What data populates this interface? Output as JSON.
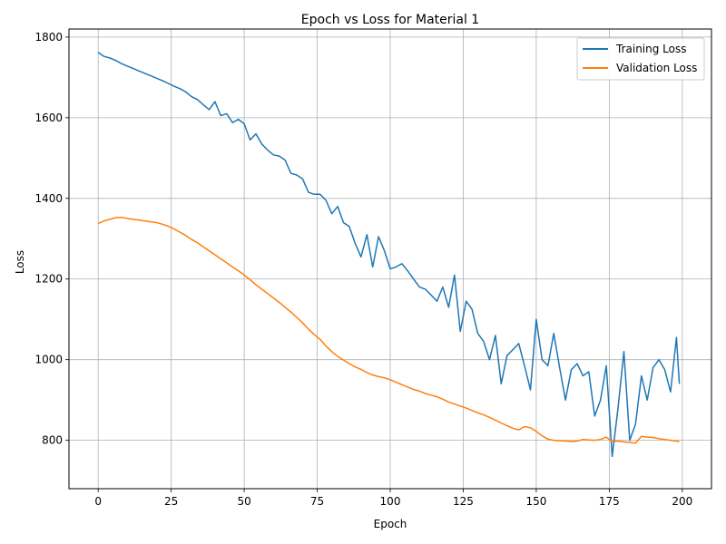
{
  "chart_data": {
    "type": "line",
    "title": "Epoch vs Loss for Material 1",
    "xlabel": "Epoch",
    "ylabel": "Loss",
    "xlim": [
      -10,
      210
    ],
    "ylim": [
      680,
      1820
    ],
    "xticks": [
      0,
      25,
      50,
      75,
      100,
      125,
      150,
      175,
      200
    ],
    "yticks": [
      800,
      1000,
      1200,
      1400,
      1600,
      1800
    ],
    "grid": true,
    "legend_position": "top-right",
    "series": [
      {
        "name": "Training Loss",
        "color": "#1f77b4",
        "x": [
          0,
          2,
          4,
          6,
          8,
          10,
          12,
          14,
          16,
          18,
          20,
          22,
          24,
          26,
          28,
          30,
          32,
          34,
          36,
          38,
          40,
          42,
          44,
          46,
          48,
          50,
          52,
          54,
          56,
          58,
          60,
          62,
          64,
          66,
          68,
          70,
          72,
          74,
          76,
          78,
          80,
          82,
          84,
          86,
          88,
          90,
          92,
          94,
          96,
          98,
          100,
          102,
          104,
          106,
          108,
          110,
          112,
          114,
          116,
          118,
          120,
          122,
          124,
          126,
          128,
          130,
          132,
          134,
          136,
          138,
          140,
          142,
          144,
          146,
          148,
          150,
          152,
          154,
          156,
          158,
          160,
          162,
          164,
          166,
          168,
          170,
          172,
          174,
          176,
          178,
          180,
          182,
          184,
          186,
          188,
          190,
          192,
          194,
          196,
          198,
          199
        ],
        "y": [
          1762,
          1752,
          1748,
          1742,
          1734,
          1728,
          1722,
          1716,
          1710,
          1704,
          1698,
          1692,
          1685,
          1678,
          1672,
          1664,
          1652,
          1645,
          1632,
          1620,
          1640,
          1605,
          1610,
          1588,
          1596,
          1585,
          1545,
          1560,
          1535,
          1520,
          1508,
          1505,
          1495,
          1462,
          1458,
          1448,
          1415,
          1410,
          1410,
          1395,
          1362,
          1380,
          1340,
          1330,
          1288,
          1255,
          1310,
          1230,
          1305,
          1270,
          1225,
          1230,
          1238,
          1220,
          1200,
          1180,
          1175,
          1160,
          1145,
          1180,
          1130,
          1210,
          1070,
          1145,
          1125,
          1065,
          1045,
          1000,
          1060,
          940,
          1010,
          1025,
          1040,
          985,
          925,
          1100,
          1000,
          985,
          1065,
          980,
          900,
          975,
          990,
          960,
          970,
          860,
          900,
          985,
          760,
          880,
          1020,
          800,
          840,
          960,
          900,
          980,
          1000,
          975,
          920,
          1055,
          940
        ]
      },
      {
        "name": "Validation Loss",
        "color": "#ff7f0e",
        "x": [
          0,
          2,
          4,
          6,
          8,
          10,
          12,
          14,
          16,
          18,
          20,
          22,
          24,
          26,
          28,
          30,
          32,
          34,
          36,
          38,
          40,
          42,
          44,
          46,
          48,
          50,
          52,
          54,
          56,
          58,
          60,
          62,
          64,
          66,
          68,
          70,
          72,
          74,
          76,
          78,
          80,
          82,
          84,
          86,
          88,
          90,
          92,
          94,
          96,
          98,
          100,
          102,
          104,
          106,
          108,
          110,
          112,
          114,
          116,
          118,
          120,
          122,
          124,
          126,
          128,
          130,
          132,
          134,
          136,
          138,
          140,
          142,
          144,
          146,
          148,
          150,
          152,
          154,
          156,
          158,
          160,
          162,
          164,
          166,
          168,
          170,
          172,
          174,
          176,
          178,
          180,
          182,
          184,
          186,
          188,
          190,
          192,
          194,
          196,
          198,
          199
        ],
        "y": [
          1338,
          1344,
          1348,
          1352,
          1353,
          1350,
          1348,
          1346,
          1344,
          1342,
          1340,
          1336,
          1331,
          1324,
          1316,
          1308,
          1298,
          1290,
          1280,
          1270,
          1260,
          1250,
          1240,
          1230,
          1220,
          1210,
          1198,
          1186,
          1175,
          1164,
          1153,
          1142,
          1130,
          1118,
          1105,
          1091,
          1076,
          1062,
          1050,
          1034,
          1020,
          1008,
          999,
          990,
          982,
          976,
          968,
          962,
          958,
          955,
          950,
          944,
          938,
          932,
          926,
          922,
          916,
          912,
          908,
          902,
          895,
          890,
          885,
          880,
          874,
          868,
          863,
          857,
          850,
          843,
          836,
          830,
          826,
          834,
          831,
          822,
          811,
          803,
          800,
          799,
          798,
          797,
          798,
          802,
          801,
          800,
          802,
          808,
          797,
          798,
          796,
          795,
          793,
          810,
          808,
          807,
          804,
          802,
          800,
          798,
          797
        ]
      }
    ]
  }
}
